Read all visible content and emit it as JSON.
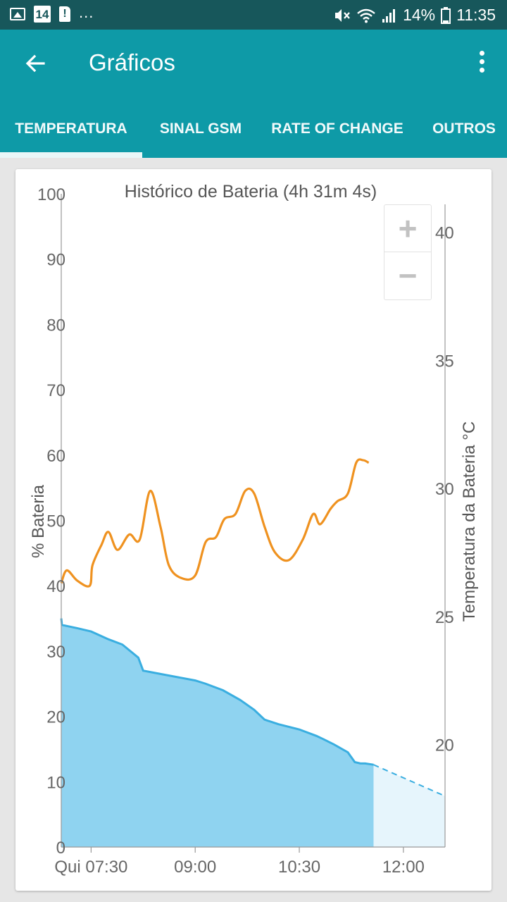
{
  "statusbar": {
    "calendar_day": "14",
    "sim_alert": "!",
    "more": "...",
    "battery_percent": "14%",
    "time": "11:35",
    "icons": [
      "image-icon",
      "calendar-icon",
      "sim-alert-icon",
      "mute-icon",
      "wifi-icon",
      "signal-icon",
      "battery-icon"
    ]
  },
  "appbar": {
    "title": "Gráficos",
    "back_icon": "arrow-left-icon",
    "menu_icon": "more-vert-icon"
  },
  "tabs": [
    {
      "label": "TEMPERATURA",
      "active": true
    },
    {
      "label": "SINAL GSM",
      "active": false
    },
    {
      "label": "RATE OF CHANGE",
      "active": false
    },
    {
      "label": "OUTROS",
      "active": false
    }
  ],
  "zoom": {
    "in": "+",
    "out": "−"
  },
  "colors": {
    "accent": "#0e9aa7",
    "status": "#17575b",
    "battery_line": "#3aaee0",
    "battery_fill": "#8fd3f0",
    "temp_line": "#ef9220"
  },
  "chart_data": {
    "type": "area",
    "title": "Histórico de Bateria (4h 31m 4s)",
    "ylabel_left": "% Bateria",
    "ylabel_right": "Temperatura da Bateria °C",
    "x_ticks": [
      "Qui 07:30",
      "09:00",
      "10:30",
      "12:00"
    ],
    "x_tick_hours": [
      7.5,
      9.0,
      10.5,
      12.0
    ],
    "xlim_hours": [
      7.07,
      12.6
    ],
    "y_left_ticks": [
      "0",
      "10",
      "20",
      "30",
      "40",
      "50",
      "60",
      "70",
      "80",
      "90",
      "100"
    ],
    "ylim_left": [
      0,
      100
    ],
    "y_right_ticks": [
      "20",
      "25",
      "30",
      "35",
      "40"
    ],
    "y_right_values": [
      20,
      25,
      30,
      35,
      40
    ],
    "ylim_right": [
      16.0,
      41.5
    ],
    "grid": false,
    "series": [
      {
        "name": "Battery",
        "axis": "left",
        "x_hours": [
          7.07,
          7.08,
          7.3,
          7.5,
          7.75,
          7.95,
          8.18,
          8.25,
          8.5,
          8.75,
          9.0,
          9.15,
          9.4,
          9.65,
          9.85,
          10.0,
          10.2,
          10.5,
          10.75,
          10.85,
          11.0,
          11.2,
          11.3,
          11.38,
          11.45,
          11.57
        ],
        "values": [
          35,
          34,
          33.5,
          33,
          31.8,
          31,
          29,
          27,
          26.5,
          26,
          25.5,
          25,
          24,
          22.5,
          21,
          19.5,
          18.8,
          18,
          17,
          16.5,
          15.7,
          14.5,
          13,
          12.8,
          12.8,
          12.6
        ]
      },
      {
        "name": "Battery (projected)",
        "axis": "left",
        "dashed": true,
        "x_hours": [
          11.57,
          12.6
        ],
        "values": [
          12.6,
          7.8
        ]
      },
      {
        "name": "Temperature",
        "axis": "right",
        "x_hours": [
          7.07,
          7.15,
          7.3,
          7.48,
          7.52,
          7.65,
          7.75,
          7.88,
          8.05,
          8.2,
          8.35,
          8.5,
          8.62,
          8.8,
          9.0,
          9.15,
          9.3,
          9.42,
          9.58,
          9.72,
          9.85,
          10.0,
          10.15,
          10.35,
          10.55,
          10.7,
          10.8,
          10.95,
          11.05,
          11.2,
          11.32,
          11.42,
          11.5
        ],
        "values": [
          26.3,
          26.8,
          26.4,
          26.2,
          27.0,
          27.8,
          28.3,
          27.6,
          28.2,
          28.0,
          29.9,
          28.5,
          27.0,
          26.5,
          26.6,
          27.9,
          28.1,
          28.8,
          29.0,
          29.9,
          29.8,
          28.5,
          27.5,
          27.2,
          28.0,
          29.0,
          28.6,
          29.2,
          29.5,
          29.8,
          31.0,
          31.1,
          31.0
        ]
      }
    ]
  }
}
